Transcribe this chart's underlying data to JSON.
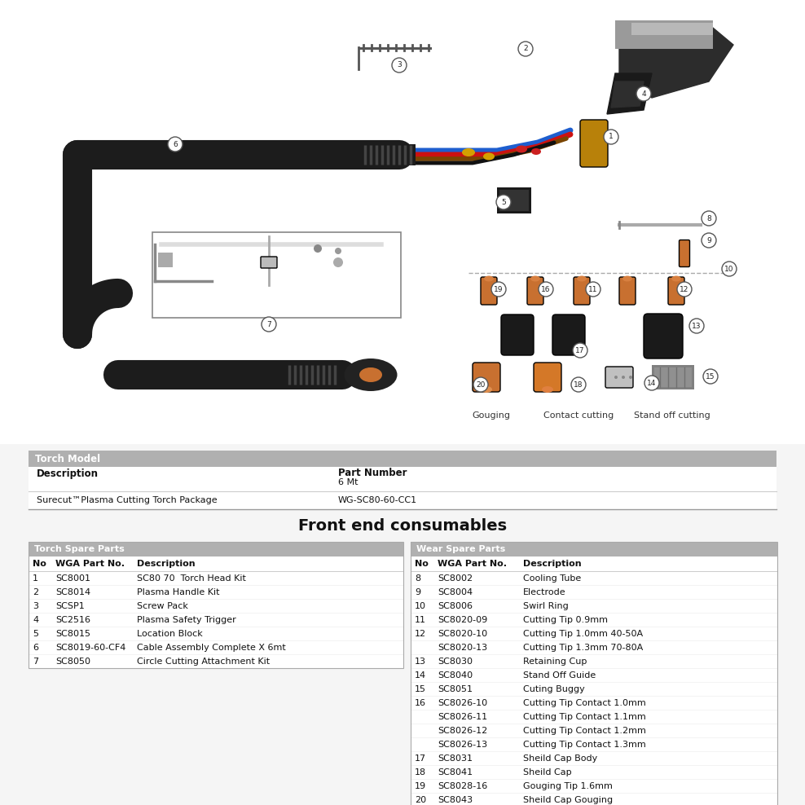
{
  "bg_color": "#f5f5f5",
  "white": "#ffffff",
  "torch_model_header": "Torch Model",
  "torch_model_col1": "Description",
  "torch_model_col2_line1": "Part Number",
  "torch_model_col2_line2": "6 Mt",
  "torch_model_row_col1": "Surecut™Plasma Cutting Torch Package",
  "torch_model_row_col2": "WG-SC80-60-CC1",
  "front_end_title": "Front end consumables",
  "torch_spare_header": "Torch Spare Parts",
  "wear_spare_header": "Wear Spare Parts",
  "columns": [
    "No",
    "WGA Part No.",
    "Description"
  ],
  "torch_spare_rows": [
    [
      "1",
      "SC8001",
      "SC80 70  Torch Head Kit"
    ],
    [
      "2",
      "SC8014",
      "Plasma Handle Kit"
    ],
    [
      "3",
      "SCSP1",
      "Screw Pack"
    ],
    [
      "4",
      "SC2516",
      "Plasma Safety Trigger"
    ],
    [
      "5",
      "SC8015",
      "Location Block"
    ],
    [
      "6",
      "SC8019-60-CF4",
      "Cable Assembly Complete X 6mt"
    ],
    [
      "7",
      "SC8050",
      "Circle Cutting Attachment Kit"
    ]
  ],
  "wear_spare_rows": [
    [
      "8",
      "SC8002",
      "Cooling Tube"
    ],
    [
      "9",
      "SC8004",
      "Electrode"
    ],
    [
      "10",
      "SC8006",
      "Swirl Ring"
    ],
    [
      "11",
      "SC8020-09",
      "Cutting Tip 0.9mm"
    ],
    [
      "12",
      "SC8020-10",
      "Cutting Tip 1.0mm 40-50A"
    ],
    [
      "",
      "SC8020-13",
      "Cutting Tip 1.3mm 70-80A"
    ],
    [
      "13",
      "SC8030",
      "Retaining Cup"
    ],
    [
      "14",
      "SC8040",
      "Stand Off Guide"
    ],
    [
      "15",
      "SC8051",
      "Cuting Buggy"
    ],
    [
      "16",
      "SC8026-10",
      "Cutting Tip Contact 1.0mm"
    ],
    [
      "",
      "SC8026-11",
      "Cutting Tip Contact 1.1mm"
    ],
    [
      "",
      "SC8026-12",
      "Cutting Tip Contact 1.2mm"
    ],
    [
      "",
      "SC8026-13",
      "Cutting Tip Contact 1.3mm"
    ],
    [
      "17",
      "SC8031",
      "Sheild Cap Body"
    ],
    [
      "18",
      "SC8041",
      "Sheild Cap"
    ],
    [
      "19",
      "SC8028-16",
      "Gouging Tip 1.6mm"
    ],
    [
      "20",
      "SC8043",
      "Sheild Cap Gouging"
    ]
  ],
  "header_gray": "#b0b0b0",
  "line_gray": "#cccccc",
  "dark_line": "#999999",
  "cable_black": "#1c1c1c",
  "copper": "#c87030",
  "brass": "#b8810a",
  "dark_gray": "#333333",
  "mid_gray": "#888888",
  "light_gray": "#aaaaaa",
  "blue_wire": "#1e5ecf",
  "red_wire": "#cc1111",
  "label_circle_ec": "#555555"
}
